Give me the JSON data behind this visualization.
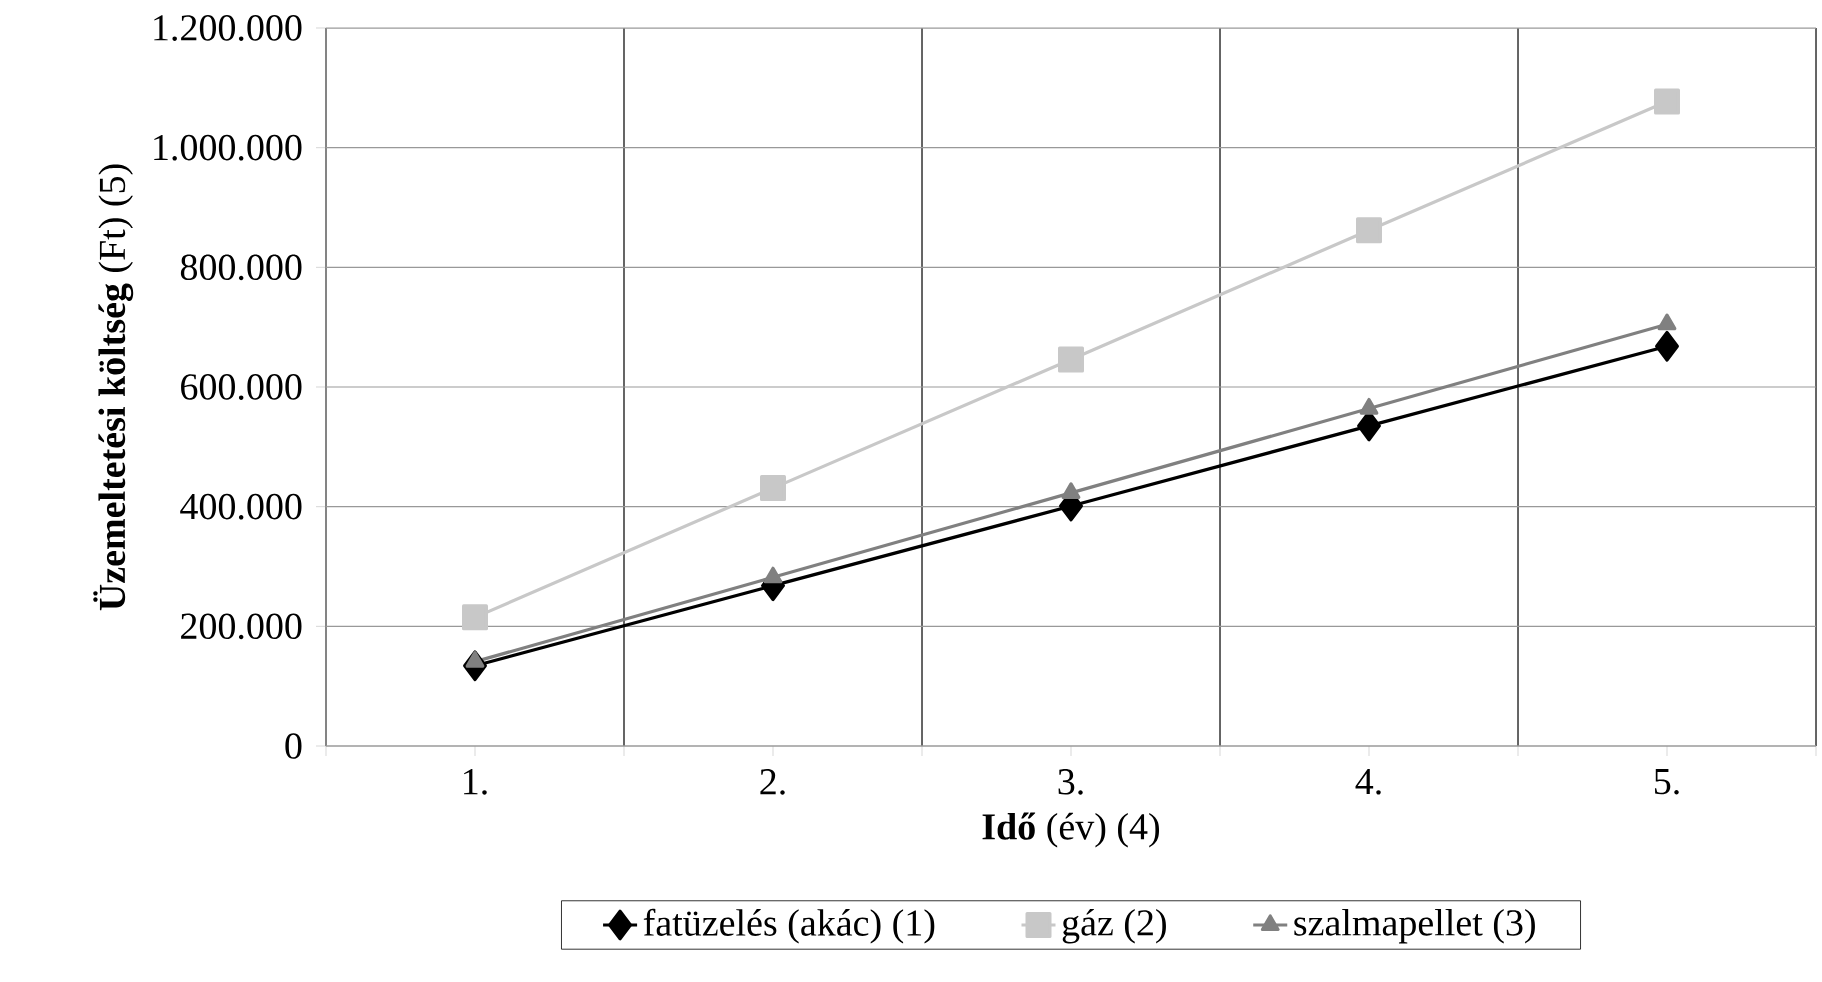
{
  "chart_data": {
    "type": "line",
    "xlabel": "**Idő** (év) (4)",
    "ylabel": "**Üzemeltetési költség** (Ft) (5)",
    "categories": [
      "1.",
      "2.",
      "3.",
      "4.",
      "5."
    ],
    "series": [
      {
        "name": "fatüzelés (akác) (1)",
        "color": "#000000",
        "marker": "diamond",
        "values": [
          134000,
          268000,
          401000,
          535000,
          668000
        ]
      },
      {
        "name": "gáz (2)",
        "color": "#c8c8c8",
        "marker": "square",
        "values": [
          215000,
          431000,
          646000,
          862000,
          1077000
        ]
      },
      {
        "name": "szalmapellet (3)",
        "color": "#808080",
        "marker": "triangle",
        "values": [
          141000,
          282000,
          423000,
          564000,
          705000
        ]
      }
    ],
    "ylim": [
      0,
      1200000
    ],
    "yticks": [
      0,
      {
        "value": 200000,
        "label": "200.000"
      },
      {
        "value": 400000,
        "label": "400.000"
      },
      {
        "value": 600000,
        "label": "600.000"
      },
      {
        "value": 800000,
        "label": "800.000"
      },
      {
        "value": 1000000,
        "label": "1.000.000"
      },
      {
        "value": 1200000,
        "label": "1.200.000"
      }
    ],
    "grid": true,
    "legend": "bottom",
    "line_style": "solid"
  }
}
